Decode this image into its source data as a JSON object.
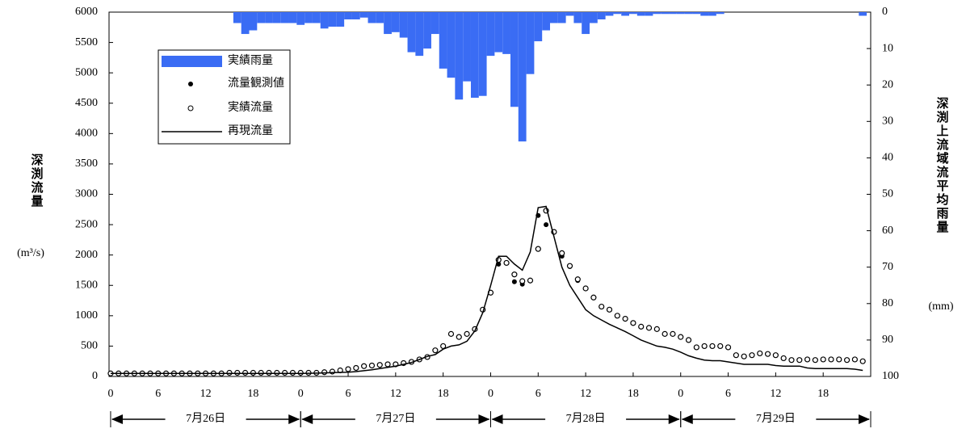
{
  "chart_data": {
    "type": "hydrograph",
    "y_label": "深渕流量",
    "y_unit": "(m³/s)",
    "y2_label": "深渕上流域流平均雨量",
    "y2_unit": "(mm)",
    "day_labels": [
      "7月26日",
      "7月27日",
      "7月28日",
      "7月29日"
    ],
    "legend": "upper left",
    "x": [
      0,
      1,
      2,
      3,
      4,
      5,
      6,
      7,
      8,
      9,
      10,
      11,
      12,
      13,
      14,
      15,
      16,
      17,
      18,
      19,
      20,
      21,
      22,
      23,
      24,
      25,
      26,
      27,
      28,
      29,
      30,
      31,
      32,
      33,
      34,
      35,
      36,
      37,
      38,
      39,
      40,
      41,
      42,
      43,
      44,
      45,
      46,
      47,
      48,
      49,
      50,
      51,
      52,
      53,
      54,
      55,
      56,
      57,
      58,
      59,
      60,
      61,
      62,
      63,
      64,
      65,
      66,
      67,
      68,
      69,
      70,
      71,
      72,
      73,
      74,
      75,
      76,
      77,
      78,
      79,
      80,
      81,
      82,
      83,
      84,
      85,
      86,
      87,
      88,
      89,
      90,
      91,
      92,
      93,
      94,
      95
    ],
    "xlim": [
      -0.2,
      96
    ],
    "xticks": [
      0,
      6,
      12,
      18,
      {
        "value": 24,
        "label": "0"
      },
      {
        "value": 30,
        "label": "6"
      },
      {
        "value": 36,
        "label": "12"
      },
      {
        "value": 42,
        "label": "18"
      },
      {
        "value": 48,
        "label": "0"
      },
      {
        "value": 54,
        "label": "6"
      },
      {
        "value": 60,
        "label": "12"
      },
      {
        "value": 66,
        "label": "18"
      },
      {
        "value": 72,
        "label": "0"
      },
      {
        "value": 78,
        "label": "6"
      },
      {
        "value": 84,
        "label": "12"
      },
      {
        "value": 90,
        "label": "18"
      }
    ],
    "ylim": [
      0,
      6000
    ],
    "yticks": [
      0,
      500,
      1000,
      1500,
      2000,
      2500,
      3000,
      3500,
      4000,
      4500,
      5000,
      5500,
      6000
    ],
    "y2lim": [
      100,
      0
    ],
    "y2ticks": [
      0,
      10,
      20,
      30,
      40,
      50,
      60,
      70,
      80,
      90,
      100
    ],
    "series": [
      {
        "name": "実績雨量",
        "kind": "bar",
        "axis": "y2",
        "color": "#3a6cf4",
        "x": [
          16,
          17,
          18,
          19,
          20,
          21,
          22,
          23,
          24,
          25,
          26,
          27,
          28,
          29,
          30,
          31,
          32,
          33,
          34,
          35,
          36,
          37,
          38,
          39,
          40,
          41,
          42,
          43,
          44,
          45,
          46,
          47,
          48,
          49,
          50,
          51,
          52,
          53,
          54,
          55,
          56,
          57,
          58,
          59,
          60,
          61,
          62,
          63,
          64,
          65,
          66,
          67,
          68,
          69,
          70,
          71,
          72,
          73,
          74,
          75,
          76,
          77,
          78,
          79,
          80,
          81,
          82,
          83,
          84,
          85,
          86,
          87,
          88,
          89,
          90,
          91,
          92,
          93,
          94,
          95
        ],
        "values": [
          3,
          6,
          5,
          3,
          3,
          3,
          3,
          3,
          3.5,
          3,
          3,
          4.5,
          4,
          4,
          2,
          2,
          1.5,
          3,
          3,
          6,
          5.5,
          7,
          11,
          12,
          10,
          6,
          15.5,
          18,
          24,
          19,
          23.5,
          23,
          12,
          11,
          11.5,
          26,
          35.5,
          17,
          8,
          5,
          3,
          3,
          1,
          3,
          6,
          3,
          2,
          1,
          0.5,
          1,
          0.5,
          1,
          1,
          0.5,
          0.5,
          0.5,
          0.5,
          0.5,
          0.5,
          1,
          1,
          0.5,
          0,
          0,
          0,
          0,
          0,
          0,
          0,
          0,
          0,
          0,
          0,
          0,
          0,
          0,
          0,
          0,
          0,
          1
        ]
      },
      {
        "name": "流量観測値",
        "kind": "dot",
        "color": "#000000",
        "x": [
          49,
          51,
          52,
          54,
          55,
          57,
          58,
          59
        ],
        "values": [
          1850,
          1560,
          1520,
          2650,
          2500,
          1980,
          1810,
          1580
        ]
      },
      {
        "name": "実績流量",
        "kind": "circle",
        "color": "#000000",
        "values": [
          50,
          50,
          50,
          50,
          50,
          50,
          50,
          50,
          50,
          50,
          50,
          50,
          50,
          50,
          50,
          60,
          60,
          60,
          60,
          60,
          60,
          60,
          60,
          60,
          60,
          60,
          60,
          70,
          80,
          100,
          120,
          140,
          170,
          180,
          190,
          200,
          200,
          220,
          240,
          280,
          320,
          430,
          500,
          700,
          650,
          700,
          780,
          1100,
          1380,
          1920,
          1870,
          1680,
          1570,
          1580,
          2100,
          2730,
          2380,
          2030,
          1820,
          1600,
          1450,
          1300,
          1150,
          1100,
          1000,
          950,
          880,
          820,
          800,
          780,
          700,
          700,
          650,
          600,
          480,
          500,
          500,
          500,
          480,
          350,
          330,
          350,
          380,
          370,
          350,
          300,
          270,
          270,
          280,
          270,
          280,
          280,
          280,
          270,
          280,
          250
        ]
      },
      {
        "name": "再現流量",
        "kind": "line",
        "color": "#000000",
        "values": [
          50,
          50,
          50,
          50,
          50,
          50,
          50,
          50,
          50,
          50,
          50,
          50,
          50,
          50,
          50,
          50,
          50,
          50,
          50,
          50,
          50,
          50,
          50,
          50,
          50,
          52,
          55,
          58,
          62,
          66,
          70,
          80,
          95,
          110,
          130,
          150,
          170,
          200,
          230,
          280,
          330,
          360,
          450,
          500,
          520,
          580,
          750,
          1050,
          1500,
          1980,
          1980,
          1850,
          1750,
          2050,
          2780,
          2800,
          2300,
          1800,
          1500,
          1300,
          1100,
          1000,
          930,
          860,
          800,
          740,
          670,
          600,
          550,
          500,
          480,
          450,
          400,
          340,
          300,
          270,
          260,
          260,
          240,
          220,
          200,
          200,
          200,
          200,
          180,
          170,
          170,
          170,
          140,
          130,
          130,
          130,
          130,
          130,
          120,
          100
        ]
      }
    ]
  }
}
